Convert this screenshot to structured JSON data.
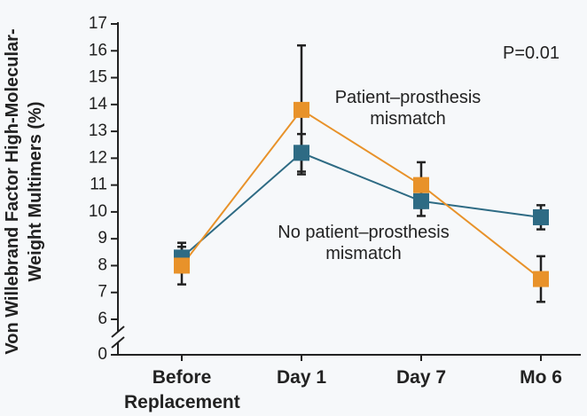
{
  "chart_data": {
    "type": "line",
    "y_label": "Von Willebrand Factor High-Molecular-Weight Multimers (%)",
    "categories": [
      "Before Replacement",
      "Day 1",
      "Day 7",
      "Mo 6"
    ],
    "series": [
      {
        "name": "No patient–prosthesis mismatch",
        "color": "#2e6b84",
        "values": [
          8.3,
          12.2,
          10.4,
          9.8
        ],
        "errors": [
          0.55,
          0.7,
          0.55,
          0.45
        ]
      },
      {
        "name": "Patient–prosthesis mismatch",
        "color": "#e8922a",
        "values": [
          8.0,
          13.8,
          11.0,
          7.5
        ],
        "errors": [
          0.7,
          2.4,
          0.85,
          0.85
        ]
      }
    ],
    "annotation": "P=0.01",
    "ylim": [
      0,
      17
    ],
    "y_break": [
      0,
      6
    ],
    "yticks": [
      0,
      6,
      7,
      8,
      9,
      10,
      11,
      12,
      13,
      14,
      15,
      16,
      17
    ]
  }
}
